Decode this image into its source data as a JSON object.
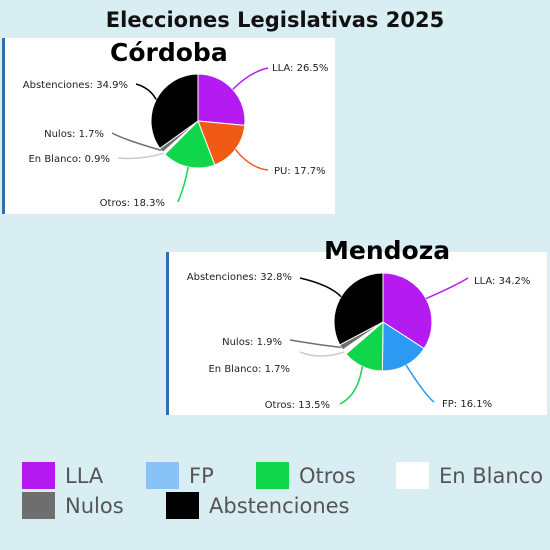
{
  "title": "Elecciones Legislativas 2025",
  "legend": [
    {
      "name": "LLA",
      "color": "#b51bf0"
    },
    {
      "name": "FP",
      "color": "#88c2f7"
    },
    {
      "name": "Otros",
      "color": "#0fd64a"
    },
    {
      "name": "En Blanco",
      "color": "#ffffff"
    },
    {
      "name": "Nulos",
      "color": "#6e6e6e"
    },
    {
      "name": "Abstenciones",
      "color": "#000000"
    }
  ],
  "chart_data": [
    {
      "type": "pie",
      "title": "Córdoba",
      "slices": [
        {
          "name": "LLA",
          "value": 26.5,
          "color": "#b51bf0",
          "label": "LLA: 26.5%"
        },
        {
          "name": "PU",
          "value": 17.7,
          "color": "#f05a14",
          "label": "PU: 17.7%"
        },
        {
          "name": "Otros",
          "value": 18.3,
          "color": "#0fd64a",
          "label": "Otros: 18.3%"
        },
        {
          "name": "En Blanco",
          "value": 0.9,
          "color": "#ffffff",
          "label": "En Blanco: 0.9%"
        },
        {
          "name": "Nulos",
          "value": 1.7,
          "color": "#6e6e6e",
          "label": "Nulos: 1.7%"
        },
        {
          "name": "Abstenciones",
          "value": 34.9,
          "color": "#000000",
          "label": "Abstenciones: 34.9%"
        }
      ]
    },
    {
      "type": "pie",
      "title": "Mendoza",
      "slices": [
        {
          "name": "LLA",
          "value": 34.2,
          "color": "#b51bf0",
          "label": "LLA: 34.2%"
        },
        {
          "name": "FP",
          "value": 16.1,
          "color": "#2c9af2",
          "label": "FP: 16.1%"
        },
        {
          "name": "Otros",
          "value": 13.5,
          "color": "#0fd64a",
          "label": "Otros: 13.5%"
        },
        {
          "name": "En Blanco",
          "value": 1.7,
          "color": "#ffffff",
          "label": "En Blanco: 1.7%"
        },
        {
          "name": "Nulos",
          "value": 1.9,
          "color": "#6e6e6e",
          "label": "Nulos: 1.9%"
        },
        {
          "name": "Abstenciones",
          "value": 32.8,
          "color": "#000000",
          "label": "Abstenciones: 32.8%"
        }
      ]
    }
  ]
}
